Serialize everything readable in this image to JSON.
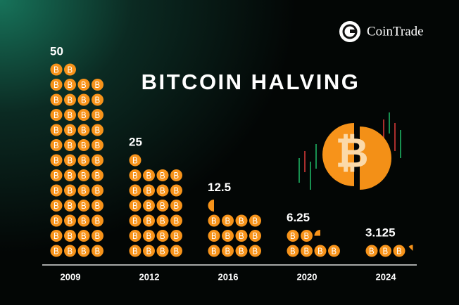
{
  "brand": "CoinTrade",
  "chart_data": {
    "type": "pictogram",
    "title": "BITCOIN HALVING",
    "categories": [
      "2009",
      "2012",
      "2016",
      "2020",
      "2024"
    ],
    "values": [
      50,
      25,
      12.5,
      6.25,
      3.125
    ],
    "color": "#f7931a"
  }
}
